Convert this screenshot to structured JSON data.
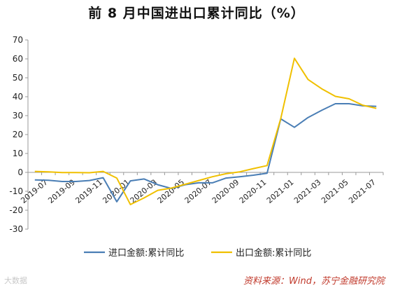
{
  "watermark": "大数据",
  "source_note": "资料来源：Wind，苏宁金融研究院",
  "chart_data": {
    "type": "line",
    "title": "前 8 月中国进出口累计同比（%）",
    "xlabel": "",
    "ylabel": "",
    "ylim": [
      -30,
      70
    ],
    "yticks": [
      -30,
      -20,
      -10,
      0,
      10,
      20,
      30,
      40,
      50,
      60,
      70
    ],
    "grid": false,
    "legend_position": "bottom",
    "x": [
      "2019-07",
      "2019-08",
      "2019-09",
      "2019-10",
      "2019-11",
      "2019-12",
      "2020-01",
      "2020-02",
      "2020-03",
      "2020-04",
      "2020-05",
      "2020-06",
      "2020-07",
      "2020-08",
      "2020-09",
      "2020-10",
      "2020-11",
      "2020-12",
      "2021-01",
      "2021-02",
      "2021-03",
      "2021-04",
      "2021-05",
      "2021-06",
      "2021-07",
      "2021-08"
    ],
    "x_tick_labels": [
      "2019-07",
      "2019-09",
      "2019-11",
      "2020-01",
      "2020-03",
      "2020-05",
      "2020-07",
      "2020-09",
      "2020-11",
      "2021-01",
      "2021-03",
      "2021-05",
      "2021-07"
    ],
    "series": [
      {
        "name": "进口金额:累计同比",
        "color": "#4a7eb5",
        "values": [
          -4.0,
          -4.2,
          -4.8,
          -4.8,
          -4.3,
          -2.8,
          -15.5,
          -4.5,
          -3.5,
          -6.5,
          -8.5,
          -6.5,
          -5.5,
          -5.5,
          -3.0,
          -2.3,
          -1.5,
          -0.5,
          28.3,
          23.8,
          29.0,
          32.8,
          36.3,
          36.3,
          35.2,
          34.9
        ]
      },
      {
        "name": "出口金额:累计同比",
        "color": "#f0c000",
        "values": [
          0.5,
          0.3,
          -0.1,
          -0.1,
          -0.2,
          0.5,
          -3.0,
          -17.0,
          -13.5,
          -9.5,
          -8.3,
          -6.3,
          -4.3,
          -2.3,
          -0.7,
          0.3,
          2.0,
          3.6,
          28.5,
          60.3,
          49.1,
          44.2,
          40.2,
          38.9,
          35.5,
          33.8
        ]
      }
    ]
  }
}
